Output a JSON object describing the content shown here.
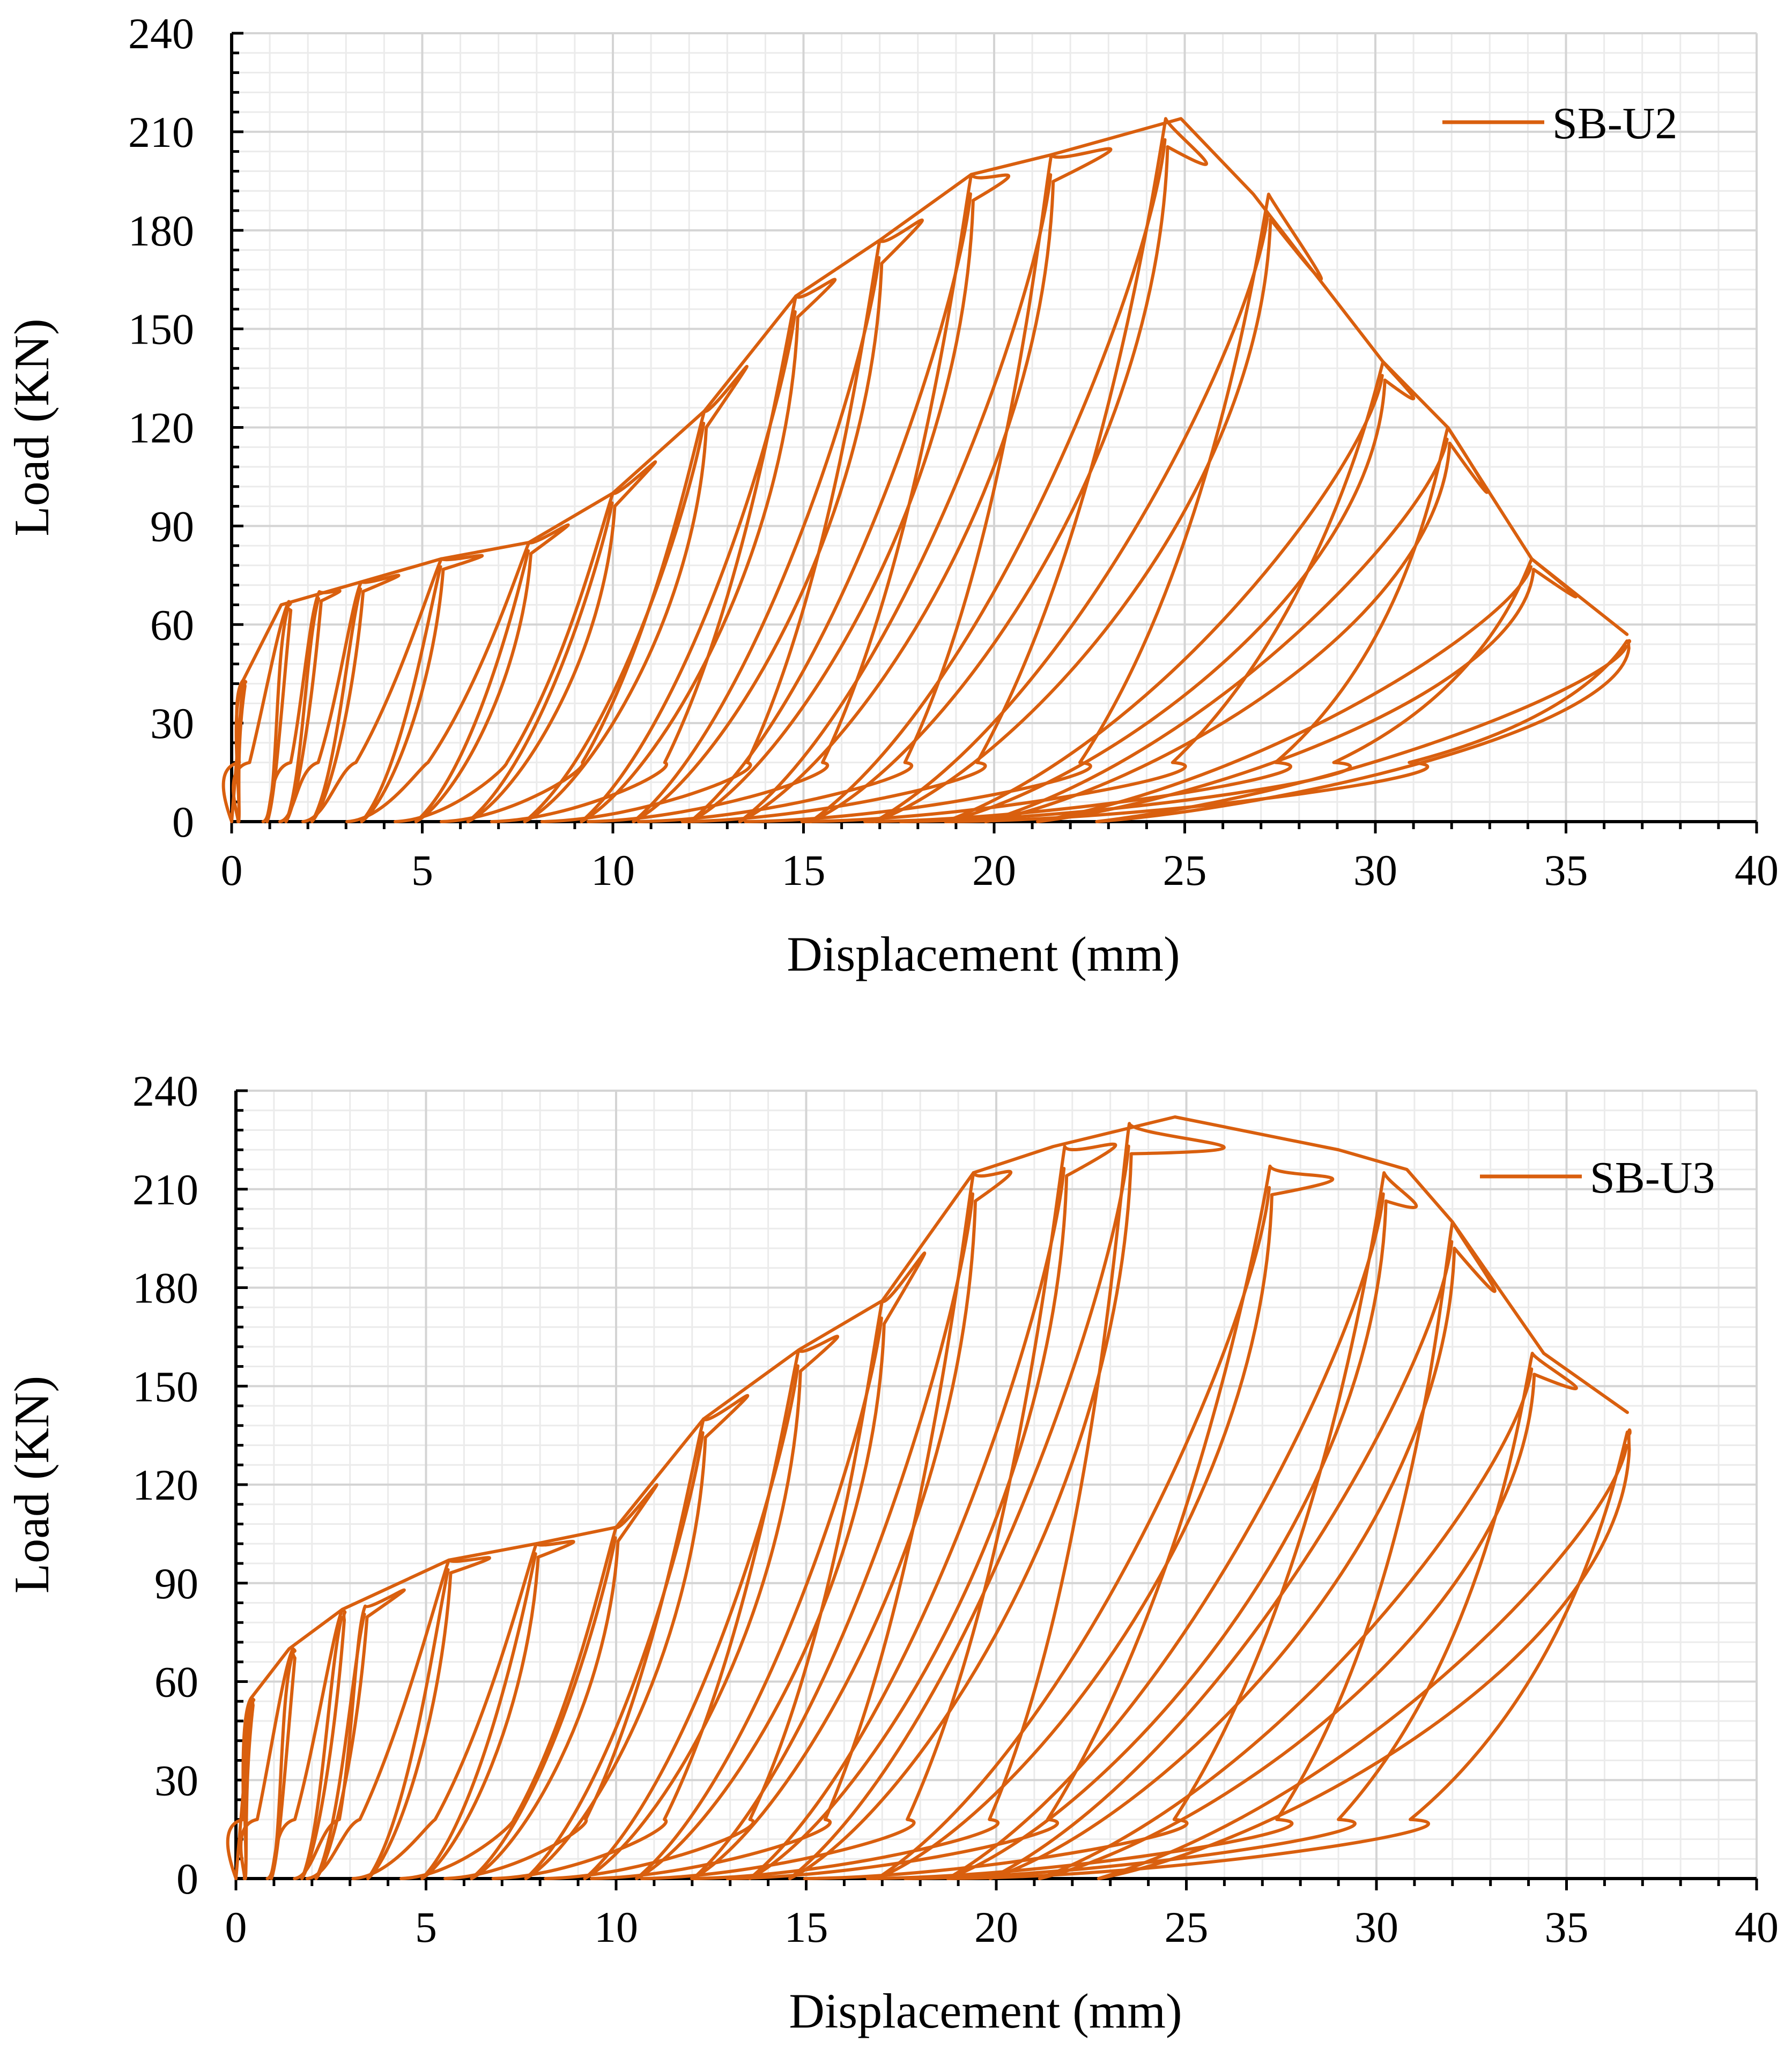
{
  "chart_data": [
    {
      "type": "line",
      "title": "",
      "xlabel": "Displacement (mm)",
      "ylabel": "Load (KN)",
      "xlim": [
        0,
        40
      ],
      "ylim": [
        0,
        240
      ],
      "xticks": [
        "0",
        "5",
        "10",
        "15",
        "20",
        "25",
        "30",
        "35",
        "40"
      ],
      "yticks": [
        "0",
        "30",
        "60",
        "90",
        "120",
        "150",
        "180",
        "210",
        "240"
      ],
      "grid": true,
      "legend_position": "top-right",
      "series": [
        {
          "name": "SB-U2",
          "color": "#D95F0E",
          "loop_peaks": [
            {
              "x": 0.3,
              "y": 43
            },
            {
              "x": 1.5,
              "y": 67
            },
            {
              "x": 2.3,
              "y": 70
            },
            {
              "x": 3.4,
              "y": 73
            },
            {
              "x": 5.5,
              "y": 80
            },
            {
              "x": 7.8,
              "y": 85
            },
            {
              "x": 10.0,
              "y": 100
            },
            {
              "x": 12.4,
              "y": 125
            },
            {
              "x": 14.8,
              "y": 160
            },
            {
              "x": 17.0,
              "y": 177
            },
            {
              "x": 19.4,
              "y": 197
            },
            {
              "x": 21.5,
              "y": 203
            },
            {
              "x": 24.5,
              "y": 214
            },
            {
              "x": 27.2,
              "y": 191
            },
            {
              "x": 30.2,
              "y": 140
            },
            {
              "x": 31.9,
              "y": 120
            },
            {
              "x": 34.1,
              "y": 80
            },
            {
              "x": 36.6,
              "y": 55
            }
          ],
          "envelope": [
            {
              "x": 0,
              "y": 0
            },
            {
              "x": 0.3,
              "y": 43
            },
            {
              "x": 1.3,
              "y": 66
            },
            {
              "x": 3.4,
              "y": 73
            },
            {
              "x": 5.5,
              "y": 80
            },
            {
              "x": 7.8,
              "y": 85
            },
            {
              "x": 10.0,
              "y": 100
            },
            {
              "x": 12.4,
              "y": 125
            },
            {
              "x": 14.8,
              "y": 160
            },
            {
              "x": 17.0,
              "y": 177
            },
            {
              "x": 19.4,
              "y": 197
            },
            {
              "x": 21.5,
              "y": 203
            },
            {
              "x": 24.9,
              "y": 214
            },
            {
              "x": 26.8,
              "y": 191
            },
            {
              "x": 30.2,
              "y": 140
            },
            {
              "x": 31.9,
              "y": 120
            },
            {
              "x": 34.1,
              "y": 80
            },
            {
              "x": 36.6,
              "y": 57
            }
          ]
        }
      ]
    },
    {
      "type": "line",
      "title": "",
      "xlabel": "Displacement (mm)",
      "ylabel": "Load (KN)",
      "xlim": [
        0,
        40
      ],
      "ylim": [
        0,
        240
      ],
      "xticks": [
        "0",
        "5",
        "10",
        "15",
        "20",
        "25",
        "30",
        "35",
        "40"
      ],
      "yticks": [
        "0",
        "30",
        "60",
        "90",
        "120",
        "150",
        "180",
        "210",
        "240"
      ],
      "grid": true,
      "legend_position": "top-right",
      "series": [
        {
          "name": "SB-U3",
          "color": "#D95F0E",
          "loop_peaks": [
            {
              "x": 0.4,
              "y": 55
            },
            {
              "x": 1.5,
              "y": 70
            },
            {
              "x": 2.8,
              "y": 82
            },
            {
              "x": 3.4,
              "y": 83
            },
            {
              "x": 5.6,
              "y": 97
            },
            {
              "x": 7.9,
              "y": 102
            },
            {
              "x": 10.0,
              "y": 107
            },
            {
              "x": 12.3,
              "y": 140
            },
            {
              "x": 14.8,
              "y": 161
            },
            {
              "x": 17.0,
              "y": 176
            },
            {
              "x": 19.4,
              "y": 215
            },
            {
              "x": 21.8,
              "y": 223
            },
            {
              "x": 23.5,
              "y": 230
            },
            {
              "x": 27.2,
              "y": 217
            },
            {
              "x": 30.2,
              "y": 215
            },
            {
              "x": 32.0,
              "y": 200
            },
            {
              "x": 34.1,
              "y": 160
            },
            {
              "x": 36.6,
              "y": 136
            }
          ],
          "envelope": [
            {
              "x": 0,
              "y": 0
            },
            {
              "x": 0.4,
              "y": 55
            },
            {
              "x": 1.4,
              "y": 70
            },
            {
              "x": 2.8,
              "y": 82
            },
            {
              "x": 5.6,
              "y": 97
            },
            {
              "x": 7.9,
              "y": 102
            },
            {
              "x": 10.0,
              "y": 107
            },
            {
              "x": 12.3,
              "y": 140
            },
            {
              "x": 14.8,
              "y": 161
            },
            {
              "x": 17.0,
              "y": 176
            },
            {
              "x": 19.4,
              "y": 215
            },
            {
              "x": 21.5,
              "y": 223
            },
            {
              "x": 24.7,
              "y": 232
            },
            {
              "x": 29.0,
              "y": 222
            },
            {
              "x": 30.8,
              "y": 216
            },
            {
              "x": 32.0,
              "y": 200
            },
            {
              "x": 34.4,
              "y": 160
            },
            {
              "x": 36.6,
              "y": 142
            }
          ]
        }
      ]
    }
  ]
}
